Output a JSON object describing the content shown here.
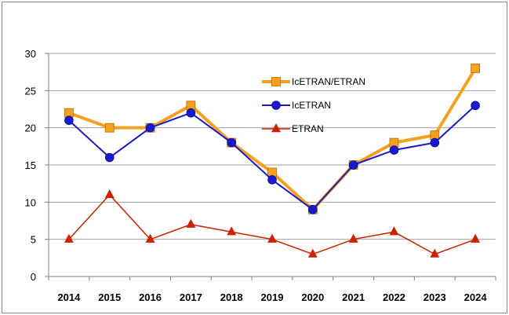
{
  "chart_data": {
    "type": "line",
    "categories": [
      "2014",
      "2015",
      "2016",
      "2017",
      "2018",
      "2019",
      "2020",
      "2021",
      "2022",
      "2023",
      "2024"
    ],
    "ylim": [
      0,
      30
    ],
    "yticks": [
      0,
      5,
      10,
      15,
      20,
      25,
      30
    ],
    "grid": true,
    "legend_position": "inside-top-right",
    "title": "",
    "xlabel": "",
    "ylabel": "",
    "series": [
      {
        "name": "IcETRAN/ETRAN",
        "values": [
          22,
          20,
          20,
          23,
          18,
          14,
          9,
          15,
          18,
          19,
          28
        ],
        "color": "#f5a020",
        "marker": "square"
      },
      {
        "name": "IcETRAN",
        "values": [
          21,
          16,
          20,
          22,
          18,
          13,
          9,
          15,
          17,
          18,
          23
        ],
        "color": "#1a1acc",
        "marker": "circle"
      },
      {
        "name": "ETRAN",
        "values": [
          5,
          11,
          5,
          7,
          6,
          5,
          3,
          5,
          6,
          3,
          5
        ],
        "color": "#cc2200",
        "marker": "triangle"
      }
    ]
  }
}
